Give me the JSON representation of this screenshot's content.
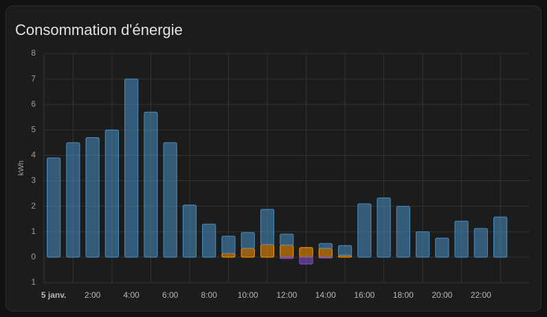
{
  "chart_data": {
    "type": "bar",
    "title": "Consommation d'énergie",
    "y_label": "kWh",
    "stacked": true,
    "grid": true,
    "categories": [
      "5 janv.",
      null,
      "2:00",
      null,
      "4:00",
      null,
      "6:00",
      null,
      "8:00",
      null,
      "10:00",
      null,
      "12:00",
      null,
      "14:00",
      null,
      "16:00",
      null,
      "18:00",
      null,
      "20:00",
      null,
      "22:00",
      null
    ],
    "series": [
      {
        "color": "#ff9800",
        "values": [
          0,
          0,
          0,
          0,
          0,
          0,
          0,
          0,
          0,
          0.16,
          0.35,
          0.5,
          0.48,
          0.38,
          0.35,
          0.08,
          0,
          0,
          0,
          0,
          0,
          0,
          0,
          0
        ]
      },
      {
        "color": "#488fc2",
        "values": [
          3.9,
          4.5,
          4.7,
          5.0,
          7.0,
          5.7,
          4.5,
          2.05,
          1.3,
          0.67,
          0.62,
          1.38,
          0.43,
          0,
          0.19,
          0.38,
          2.1,
          2.33,
          2.0,
          1.0,
          0.75,
          1.42,
          1.13,
          1.58
        ]
      },
      {
        "color": "#8353d4",
        "values": [
          0,
          0,
          0,
          0,
          0,
          0,
          0,
          0,
          0,
          0,
          0,
          0,
          -0.05,
          -0.27,
          -0.03,
          0,
          0,
          0,
          0,
          0,
          0,
          0,
          0,
          0
        ]
      }
    ],
    "ylim": [
      -1,
      8
    ],
    "yticks": [
      {
        "value": -1,
        "label": "1"
      },
      0,
      1,
      2,
      3,
      4,
      5,
      6,
      7,
      8
    ]
  }
}
